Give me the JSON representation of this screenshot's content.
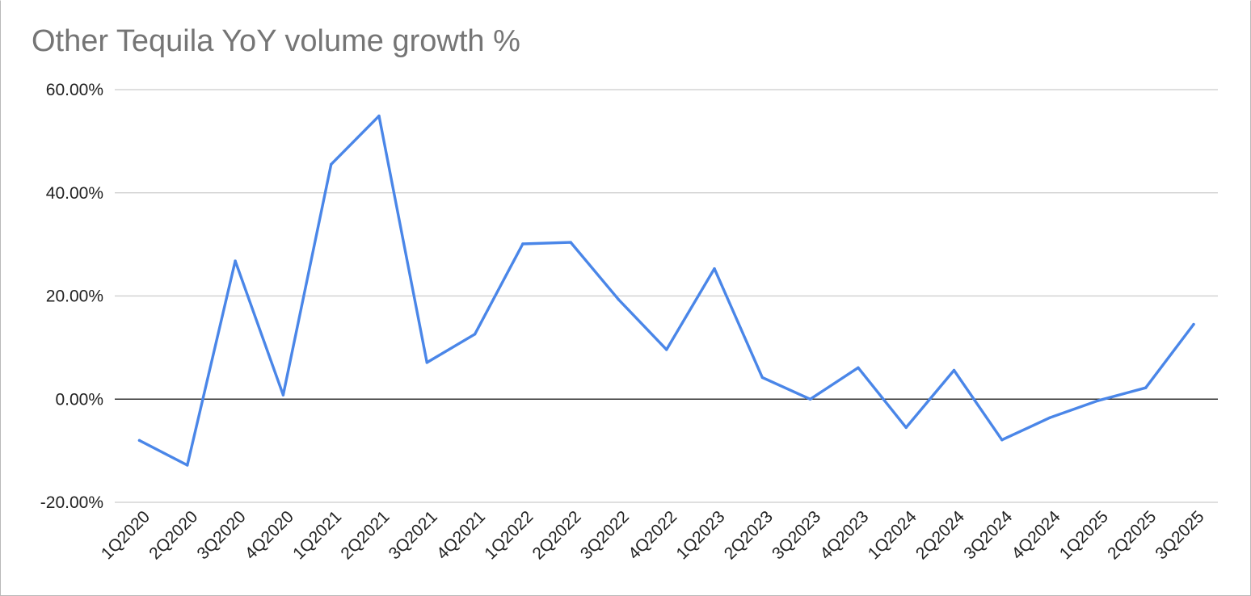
{
  "chart_data": {
    "type": "line",
    "title": "Other Tequila YoY volume growth %",
    "xlabel": "",
    "ylabel": "",
    "ylim": [
      -20,
      60
    ],
    "yticks": [
      {
        "value": 60,
        "label": "60.00%"
      },
      {
        "value": 40,
        "label": "40.00%"
      },
      {
        "value": 20,
        "label": "20.00%"
      },
      {
        "value": 0,
        "label": "0.00%"
      },
      {
        "value": -20,
        "label": "-20.00%"
      }
    ],
    "grid": true,
    "legend": "none",
    "categories": [
      "1Q2020",
      "2Q2020",
      "3Q2020",
      "4Q2020",
      "1Q2021",
      "2Q2021",
      "3Q2021",
      "4Q2021",
      "1Q2022",
      "2Q2022",
      "3Q2022",
      "4Q2022",
      "1Q2023",
      "2Q2023",
      "3Q2023",
      "4Q2023",
      "1Q2024",
      "2Q2024",
      "3Q2024",
      "4Q2024",
      "1Q2025",
      "2Q2025",
      "3Q2025"
    ],
    "series": [
      {
        "color": "#4a86e8",
        "values": [
          -8.0,
          -12.8,
          26.8,
          0.8,
          45.5,
          54.9,
          7.1,
          12.6,
          30.1,
          30.4,
          19.3,
          9.6,
          25.3,
          4.2,
          0.0,
          6.1,
          -5.5,
          5.6,
          -7.9,
          -3.6,
          -0.3,
          2.2,
          14.5
        ]
      }
    ],
    "colors": {
      "grid": "#cccccc",
      "zero_line": "#333333",
      "title": "#757575",
      "tick": "#222222"
    }
  }
}
